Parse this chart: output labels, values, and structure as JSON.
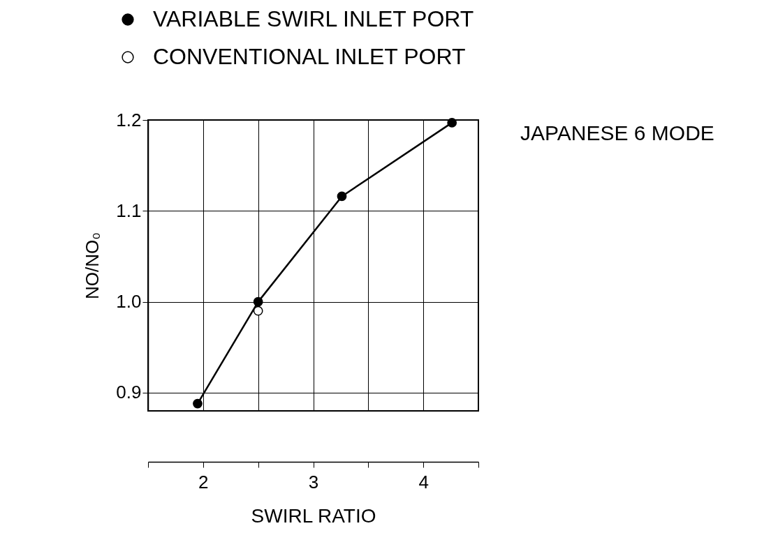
{
  "chart_data": {
    "type": "line",
    "xlabel": "SWIRL RATIO",
    "ylabel": "NO/NO₀",
    "annotations": [
      "JAPANESE 6 MODE"
    ],
    "series": [
      {
        "name": "VARIABLE SWIRL INLET PORT",
        "color": "#000000",
        "marker": "circle",
        "x": [
          1.95,
          2.5,
          3.26,
          4.26
        ],
        "values": [
          0.888,
          1.0,
          1.116,
          1.197
        ]
      },
      {
        "name": "CONVENTIONAL INLET PORT",
        "type": "scatter",
        "color": "#000000",
        "marker": "circle",
        "x": [
          2.5
        ],
        "values": [
          0.99
        ]
      }
    ],
    "xlim": [
      1.5,
      4.5
    ],
    "xticks": [
      {
        "value": 1.5,
        "label": null
      },
      2,
      {
        "value": 2.5,
        "label": null
      },
      3,
      {
        "value": 3.5,
        "label": null
      },
      4,
      {
        "value": 4.5,
        "label": null
      }
    ],
    "ylim": [
      0.88,
      1.2
    ],
    "yticks": [
      0.9,
      {
        "value": 1,
        "label": "1.0"
      },
      1.1,
      1.2
    ],
    "grid": true,
    "legend": "top left"
  }
}
